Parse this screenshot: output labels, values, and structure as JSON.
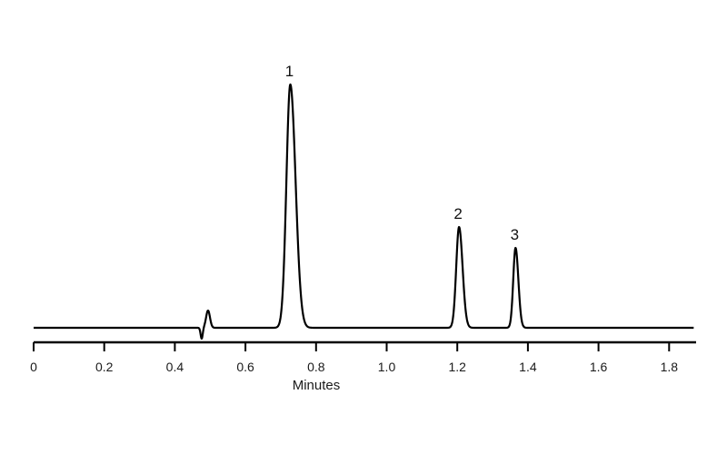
{
  "chart_data": {
    "type": "line",
    "title": "",
    "xlabel": "Minutes",
    "ylabel": "",
    "xlim": [
      0,
      1.87
    ],
    "x_ticks": [
      "0",
      "0.2",
      "0.4",
      "0.6",
      "0.8",
      "1.0",
      "1.2",
      "1.4",
      "1.6",
      "1.8"
    ],
    "x_tick_values": [
      0,
      0.2,
      0.4,
      0.6,
      0.8,
      1.0,
      1.2,
      1.4,
      1.6,
      1.8
    ],
    "grid": false,
    "legend": "none",
    "series": [
      {
        "peaks": [
          {
            "label": "1",
            "x": 0.727
          },
          {
            "label": "2",
            "x": 1.205
          },
          {
            "label": "3",
            "x": 1.365
          }
        ]
      }
    ],
    "colors": {
      "line": "#000000",
      "axis": "#000000"
    }
  }
}
